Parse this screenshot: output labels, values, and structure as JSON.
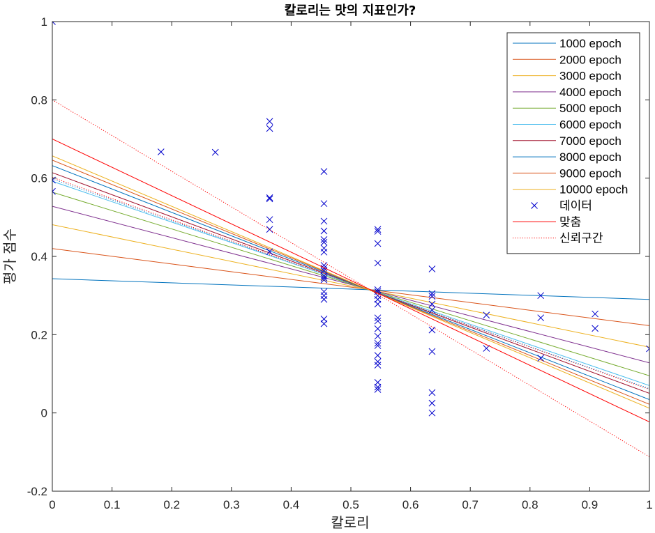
{
  "chart_data": {
    "type": "line",
    "title": "칼로리는 맛의 지표인가?",
    "xlabel": "칼로리",
    "ylabel": "평가 점수",
    "xlim": [
      0,
      1
    ],
    "ylim": [
      -0.2,
      1
    ],
    "xticks": [
      "0",
      "0.1",
      "0.2",
      "0.3",
      "0.4",
      "0.5",
      "0.6",
      "0.7",
      "0.8",
      "0.9",
      "1"
    ],
    "yticks": [
      "-0.2",
      "0",
      "0.2",
      "0.4",
      "0.6",
      "0.8",
      "1"
    ],
    "grid": false,
    "legend_location": "top-right",
    "series": [
      {
        "name": "1000 epoch",
        "color": "#0072BD",
        "style": "solid",
        "x": [
          0,
          1
        ],
        "y": [
          0.343,
          0.29
        ]
      },
      {
        "name": "2000 epoch",
        "color": "#D95319",
        "style": "solid",
        "x": [
          0,
          1
        ],
        "y": [
          0.42,
          0.223
        ]
      },
      {
        "name": "3000 epoch",
        "color": "#EDB120",
        "style": "solid",
        "x": [
          0,
          1
        ],
        "y": [
          0.481,
          0.168
        ]
      },
      {
        "name": "4000 epoch",
        "color": "#7E2F8E",
        "style": "solid",
        "x": [
          0,
          1
        ],
        "y": [
          0.528,
          0.128
        ]
      },
      {
        "name": "5000 epoch",
        "color": "#77AC30",
        "style": "solid",
        "x": [
          0,
          1
        ],
        "y": [
          0.564,
          0.095
        ]
      },
      {
        "name": "6000 epoch",
        "color": "#4DBEEE",
        "style": "solid",
        "x": [
          0,
          1
        ],
        "y": [
          0.592,
          0.07
        ]
      },
      {
        "name": "7000 epoch",
        "color": "#A2142F",
        "style": "solid",
        "x": [
          0,
          1
        ],
        "y": [
          0.614,
          0.05
        ]
      },
      {
        "name": "8000 epoch",
        "color": "#0072BD",
        "style": "solid",
        "x": [
          0,
          1
        ],
        "y": [
          0.632,
          0.034
        ]
      },
      {
        "name": "9000 epoch",
        "color": "#D95319",
        "style": "solid",
        "x": [
          0,
          1
        ],
        "y": [
          0.646,
          0.022
        ]
      },
      {
        "name": "10000 epoch",
        "color": "#EDB120",
        "style": "solid",
        "x": [
          0,
          1
        ],
        "y": [
          0.657,
          0.012
        ]
      },
      {
        "name": "데이터",
        "color": "#0000CC",
        "style": "marker-x",
        "x": [
          0,
          0,
          0,
          0.182,
          0.273,
          0.364,
          0.364,
          0.364,
          0.364,
          0.364,
          0.364,
          0.364,
          0.455,
          0.455,
          0.455,
          0.455,
          0.455,
          0.455,
          0.455,
          0.455,
          0.455,
          0.455,
          0.455,
          0.455,
          0.455,
          0.455,
          0.455,
          0.455,
          0.455,
          0.455,
          0.455,
          0.545,
          0.545,
          0.545,
          0.545,
          0.545,
          0.545,
          0.545,
          0.545,
          0.545,
          0.545,
          0.545,
          0.545,
          0.545,
          0.545,
          0.545,
          0.545,
          0.545,
          0.545,
          0.545,
          0.545,
          0.545,
          0.636,
          0.636,
          0.636,
          0.636,
          0.636,
          0.636,
          0.636,
          0.636,
          0.636,
          0.636,
          0.727,
          0.727,
          0.818,
          0.818,
          0.818,
          0.909,
          0.909,
          1.0
        ],
        "y": [
          1.0,
          0.595,
          0.566,
          0.667,
          0.666,
          0.745,
          0.727,
          0.55,
          0.547,
          0.494,
          0.469,
          0.412,
          0.617,
          0.535,
          0.49,
          0.465,
          0.443,
          0.436,
          0.421,
          0.411,
          0.377,
          0.364,
          0.35,
          0.31,
          0.29,
          0.24,
          0.228,
          0.37,
          0.345,
          0.34,
          0.3,
          0.469,
          0.464,
          0.433,
          0.383,
          0.315,
          0.3,
          0.29,
          0.278,
          0.243,
          0.235,
          0.215,
          0.196,
          0.178,
          0.172,
          0.147,
          0.131,
          0.122,
          0.078,
          0.066,
          0.06,
          0.31,
          0.368,
          0.305,
          0.298,
          0.278,
          0.263,
          0.212,
          0.157,
          0.052,
          0.025,
          0.0,
          0.25,
          0.165,
          0.3,
          0.243,
          0.14,
          0.253,
          0.216,
          0.164
        ]
      },
      {
        "name": "맞춤",
        "color": "#FF0000",
        "style": "solid",
        "x": [
          0,
          1
        ],
        "y": [
          0.7,
          -0.023
        ]
      },
      {
        "name": "신뢰구간",
        "color": "#FF0000",
        "style": "dotted",
        "x": [
          0,
          1
        ],
        "y": [
          0.8,
          -0.112
        ]
      }
    ],
    "extra_lines": [
      {
        "color": "#FF0000",
        "style": "dotted",
        "x": [
          0,
          1
        ],
        "y": [
          0.602,
          0.06
        ]
      },
      {
        "color": "#0072BD",
        "style": "dotted",
        "x": [
          0,
          1
        ],
        "y": [
          0.598,
          0.062
        ]
      }
    ]
  }
}
